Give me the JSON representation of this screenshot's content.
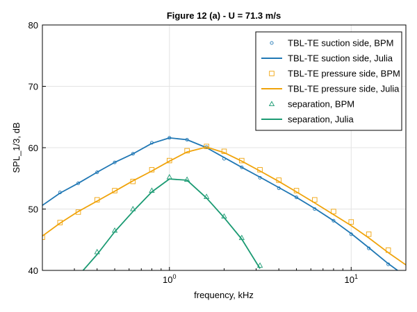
{
  "chart_data": {
    "type": "line",
    "title": "Figure 12 (a) - U = 71.3 m/s",
    "xlabel": "frequency, kHz",
    "ylabel": "SPL_1/3, dB",
    "xscale": "log",
    "xlim": [
      0.2,
      20
    ],
    "ylim": [
      40,
      80
    ],
    "yticks": [
      40,
      50,
      60,
      70,
      80
    ],
    "xticks": [
      {
        "value": 1,
        "base": "10",
        "exp": "0"
      },
      {
        "value": 10,
        "base": "10",
        "exp": "1"
      }
    ],
    "grid": true,
    "legend_position": "top-right",
    "colors": {
      "blue": "#1f77b4",
      "orange": "#f0a30a",
      "green": "#1a9a72"
    },
    "series": [
      {
        "name": "TBL-TE suction side, BPM",
        "style": "markers",
        "marker": "circle",
        "color": "#1f77b4",
        "x": [
          0.25,
          0.315,
          0.4,
          0.5,
          0.63,
          0.8,
          1.0,
          1.25,
          1.6,
          2.0,
          2.5,
          3.15,
          4.0,
          5.0,
          6.3,
          8.0,
          10.0,
          12.5,
          16.0
        ],
        "y": [
          52.7,
          54.2,
          56.0,
          57.6,
          59.0,
          60.8,
          61.6,
          61.3,
          60.1,
          58.2,
          56.8,
          55.1,
          53.4,
          51.9,
          50.0,
          48.1,
          45.9,
          43.6,
          41.0
        ]
      },
      {
        "name": "TBL-TE suction side, Julia",
        "style": "line",
        "color": "#1f77b4",
        "x": [
          0.2,
          0.25,
          0.315,
          0.4,
          0.5,
          0.63,
          0.8,
          1.0,
          1.25,
          1.6,
          2.0,
          2.5,
          3.15,
          4.0,
          5.0,
          6.3,
          8.0,
          10.0,
          12.5,
          16.0,
          18.0
        ],
        "y": [
          50.6,
          52.6,
          54.2,
          56.0,
          57.6,
          59.0,
          60.7,
          61.6,
          61.3,
          60.0,
          58.4,
          56.8,
          55.2,
          53.5,
          51.9,
          50.1,
          48.1,
          46.0,
          43.7,
          41.1,
          40.0
        ]
      },
      {
        "name": "TBL-TE pressure side, BPM",
        "style": "markers",
        "marker": "square",
        "color": "#f0a30a",
        "x": [
          0.2,
          0.25,
          0.315,
          0.4,
          0.5,
          0.63,
          0.8,
          1.0,
          1.25,
          1.6,
          2.0,
          2.5,
          3.15,
          4.0,
          5.0,
          6.3,
          8.0,
          10.0,
          12.5,
          16.0
        ],
        "y": [
          45.4,
          47.8,
          49.5,
          51.5,
          53.0,
          54.5,
          56.4,
          57.9,
          59.5,
          60.2,
          59.4,
          57.9,
          56.4,
          54.7,
          53.0,
          51.5,
          49.6,
          47.9,
          45.9,
          43.3
        ]
      },
      {
        "name": "TBL-TE pressure side, Julia",
        "style": "line",
        "color": "#f0a30a",
        "x": [
          0.2,
          0.25,
          0.315,
          0.4,
          0.5,
          0.63,
          0.8,
          1.0,
          1.25,
          1.6,
          2.0,
          2.5,
          3.15,
          4.0,
          5.0,
          6.3,
          8.0,
          10.0,
          12.5,
          16.0,
          20.0
        ],
        "y": [
          45.6,
          47.7,
          49.6,
          51.3,
          52.9,
          54.6,
          56.2,
          57.8,
          59.3,
          60.1,
          59.2,
          57.8,
          56.2,
          54.5,
          52.8,
          51.0,
          49.1,
          47.3,
          45.3,
          42.9,
          40.9
        ]
      },
      {
        "name": "separation, BPM",
        "style": "markers",
        "marker": "triangle",
        "color": "#1a9a72",
        "x": [
          0.4,
          0.5,
          0.63,
          0.8,
          1.0,
          1.25,
          1.6,
          2.0,
          2.5,
          3.15
        ],
        "y": [
          43.0,
          46.5,
          50.0,
          53.0,
          55.2,
          54.8,
          52.0,
          48.8,
          45.3,
          40.8
        ]
      },
      {
        "name": "separation, Julia",
        "style": "line",
        "color": "#1a9a72",
        "x": [
          0.335,
          0.4,
          0.5,
          0.63,
          0.8,
          1.0,
          1.25,
          1.6,
          2.0,
          2.5,
          3.15
        ],
        "y": [
          40.0,
          42.6,
          46.3,
          49.6,
          52.8,
          54.9,
          54.7,
          51.8,
          48.6,
          45.1,
          40.3
        ]
      }
    ]
  }
}
